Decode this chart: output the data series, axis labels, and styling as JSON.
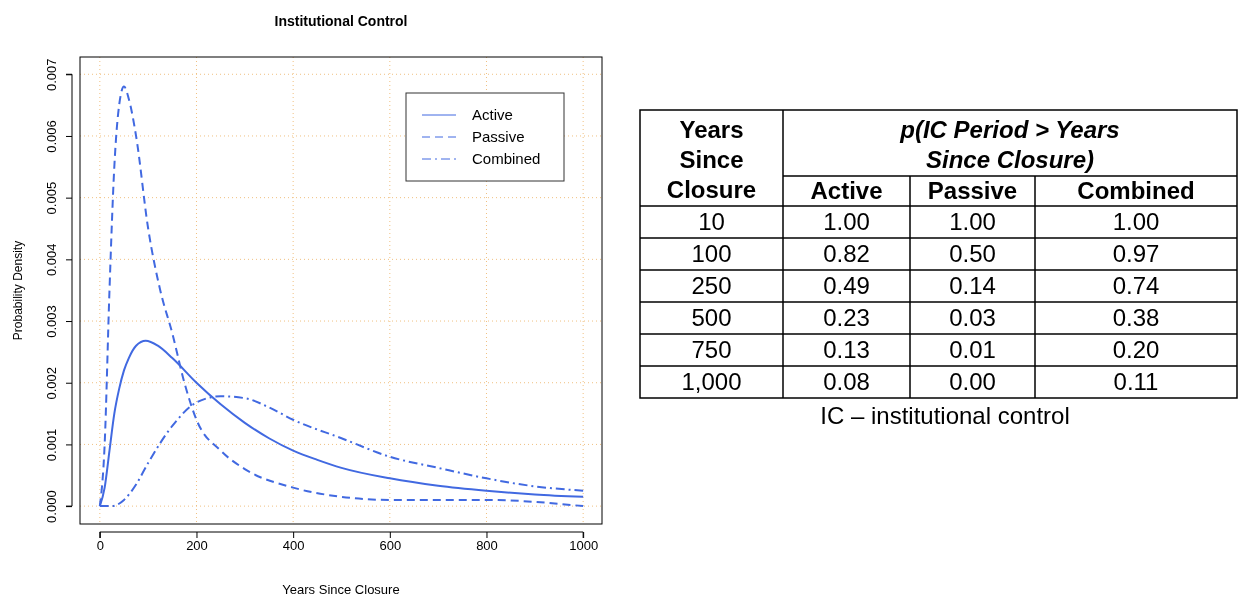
{
  "chart_data": [
    {
      "type": "line",
      "title": "Institutional Control",
      "xlabel": "Years Since Closure",
      "ylabel": "Probability Density",
      "xlim": [
        -41,
        1039
      ],
      "ylim": [
        -0.00029,
        0.00728
      ],
      "xticks": [
        0,
        200,
        400,
        600,
        800,
        1000
      ],
      "yticks": [
        {
          "value": 0,
          "label": "0.000"
        },
        {
          "value": 0.001,
          "label": "0.001"
        },
        {
          "value": 0.002,
          "label": "0.002"
        },
        {
          "value": 0.003,
          "label": "0.003"
        },
        {
          "value": 0.004,
          "label": "0.004"
        },
        {
          "value": 0.005,
          "label": "0.005"
        },
        {
          "value": 0.006,
          "label": "0.006"
        },
        {
          "value": 0.007,
          "label": "0.007"
        }
      ],
      "grid": true,
      "legend": "top right",
      "series": [
        {
          "name": "Active",
          "color": "#4169e1",
          "line_style": "solid",
          "x": [
            0,
            10,
            20,
            30,
            40,
            50,
            60,
            75,
            95,
            120,
            150,
            200,
            250,
            300,
            350,
            400,
            450,
            500,
            600,
            700,
            800,
            900,
            1000
          ],
          "values": [
            0,
            0.0003,
            0.0009,
            0.0015,
            0.0019,
            0.0022,
            0.0024,
            0.0026,
            0.00268,
            0.0026,
            0.0024,
            0.002,
            0.00165,
            0.00135,
            0.0011,
            0.0009,
            0.00075,
            0.00062,
            0.00045,
            0.00033,
            0.00025,
            0.00019,
            0.00015
          ]
        },
        {
          "name": "Passive",
          "color": "#4169e1",
          "line_style": "dashed",
          "x": [
            0,
            10,
            20,
            30,
            40,
            50,
            60,
            75,
            100,
            125,
            150,
            175,
            200,
            250,
            300,
            400,
            500,
            600,
            800,
            1000
          ],
          "values": [
            0,
            0.001,
            0.0035,
            0.0055,
            0.0065,
            0.0068,
            0.0066,
            0.006,
            0.0045,
            0.0035,
            0.0028,
            0.002,
            0.0014,
            0.0009,
            0.0006,
            0.0003,
            0.00015,
            0.0001,
            0.0001,
            0
          ]
        },
        {
          "name": "Combined",
          "color": "#4169e1",
          "line_style": "dashdot",
          "x": [
            0,
            25,
            50,
            75,
            100,
            150,
            200,
            250,
            300,
            350,
            400,
            500,
            600,
            700,
            800,
            900,
            1000
          ],
          "values": [
            0,
            0,
            0.0001,
            0.00035,
            0.0007,
            0.0013,
            0.00168,
            0.00178,
            0.00175,
            0.0016,
            0.0014,
            0.0011,
            0.0008,
            0.00062,
            0.00045,
            0.00032,
            0.00025
          ]
        }
      ]
    },
    {
      "type": "other",
      "xlabel": "Years Since Closure",
      "title": "p(IC Period > Years Since Closure)",
      "categories": [
        "10",
        "100",
        "250",
        "500",
        "750",
        "1,000"
      ],
      "series": [
        {
          "name": "Active",
          "values": [
            1.0,
            0.82,
            0.49,
            0.23,
            0.13,
            0.08
          ],
          "value_labels": [
            "1.00",
            "0.82",
            "0.49",
            "0.23",
            "0.13",
            "0.08"
          ]
        },
        {
          "name": "Passive",
          "values": [
            1.0,
            0.5,
            0.14,
            0.03,
            0.01,
            0.0
          ],
          "value_labels": [
            "1.00",
            "0.50",
            "0.14",
            "0.03",
            "0.01",
            "0.00"
          ]
        },
        {
          "name": "Combined",
          "values": [
            1.0,
            0.97,
            0.74,
            0.38,
            0.2,
            0.11
          ],
          "value_labels": [
            "1.00",
            "0.97",
            "0.74",
            "0.38",
            "0.20",
            "0.11"
          ]
        }
      ],
      "annotations": [
        "IC – institutional control"
      ]
    }
  ]
}
